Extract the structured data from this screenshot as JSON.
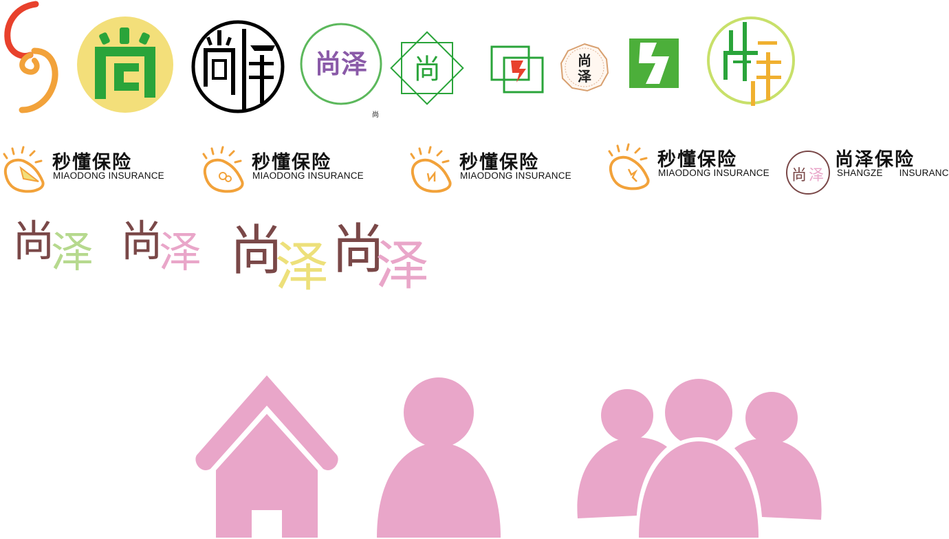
{
  "logo_marks": {
    "shang": "尚",
    "shangze": "尚泽",
    "ze": "泽",
    "caption": "尚"
  },
  "brands": [
    {
      "cn": "秒懂保险",
      "en": "MIAODONG INSURANCE"
    },
    {
      "cn": "秒懂保险",
      "en": "MIAODONG INSURANCE"
    },
    {
      "cn": "秒懂保险",
      "en": "MIAODONG INSURANCE"
    },
    {
      "cn": "秒懂保险",
      "en": "MIAODONG INSURANCE"
    },
    {
      "cn": "尚泽保险",
      "en_left": "SHANGZE",
      "en_right": "INSURANCE",
      "mark": "尚泽"
    }
  ],
  "wordmarks": [
    {
      "a": "尚",
      "b": "泽",
      "color_a": "#7a4848",
      "color_b": "#b6d98e"
    },
    {
      "a": "尚",
      "b": "泽",
      "color_a": "#7a4848",
      "color_b": "#e9a6c9"
    },
    {
      "a": "尚",
      "b": "泽",
      "color_a": "#7a4848",
      "color_b": "#ede07a"
    },
    {
      "a": "尚",
      "b": "泽",
      "color_a": "#7a4848",
      "color_b": "#e9a6c9"
    }
  ],
  "icons": [
    "home-icon",
    "user-icon",
    "group-icon"
  ],
  "colors": {
    "pink": "#e9a6c9",
    "green": "#2aa43a",
    "yellow": "#f3df7a",
    "purple": "#8a5aa8",
    "brown": "#7a4848",
    "orange": "#f2a23a",
    "red": "#e8412c"
  }
}
